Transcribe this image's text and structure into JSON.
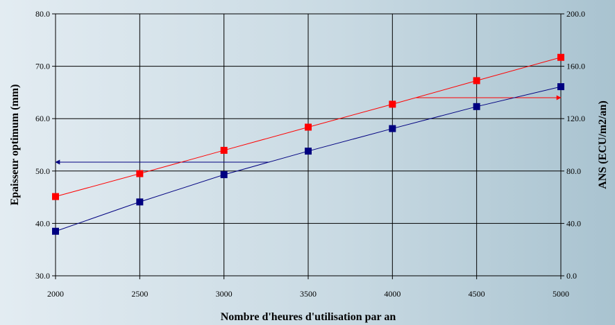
{
  "chart_data": {
    "type": "line",
    "xlabel": "Nombre d'heures d'utilisation par an",
    "ylabel_left": "Epaisseur optimum (mm)",
    "ylabel_right": "ANS (ECU/m2/an)",
    "x": [
      2000,
      2500,
      3000,
      3500,
      4000,
      4500,
      5000
    ],
    "x_ticks": [
      "2000",
      "2500",
      "3000",
      "3500",
      "4000",
      "4500",
      "5000"
    ],
    "xlim": [
      2000,
      5000
    ],
    "ylim_left": [
      30,
      80
    ],
    "ylim_right": [
      0,
      200
    ],
    "y_ticks_left": [
      "30.0",
      "40.0",
      "50.0",
      "60.0",
      "70.0",
      "80.0"
    ],
    "y_ticks_right": [
      "0.0",
      "40.0",
      "80.0",
      "120.0",
      "160.0",
      "200.0"
    ],
    "grid": true,
    "series": [
      {
        "axis": "left",
        "color": "#000080",
        "marker": "square",
        "values": [
          38.5,
          44.1,
          49.3,
          53.8,
          58.1,
          62.3,
          66.1
        ]
      },
      {
        "axis": "right",
        "color": "#ff0000",
        "marker": "square",
        "values": [
          60.5,
          78.0,
          95.8,
          113.5,
          131.0,
          149.0,
          166.8
        ]
      }
    ],
    "annotations": [
      {
        "type": "arrow",
        "color": "#000080",
        "direction": "left",
        "y_axis": "left",
        "y": 51.7,
        "x_from": 3270,
        "x_to": 2000
      },
      {
        "type": "arrow",
        "color": "#ff0000",
        "direction": "right",
        "y_axis": "left",
        "y": 64.0,
        "x_from": 4140,
        "x_to": 5000
      }
    ]
  }
}
